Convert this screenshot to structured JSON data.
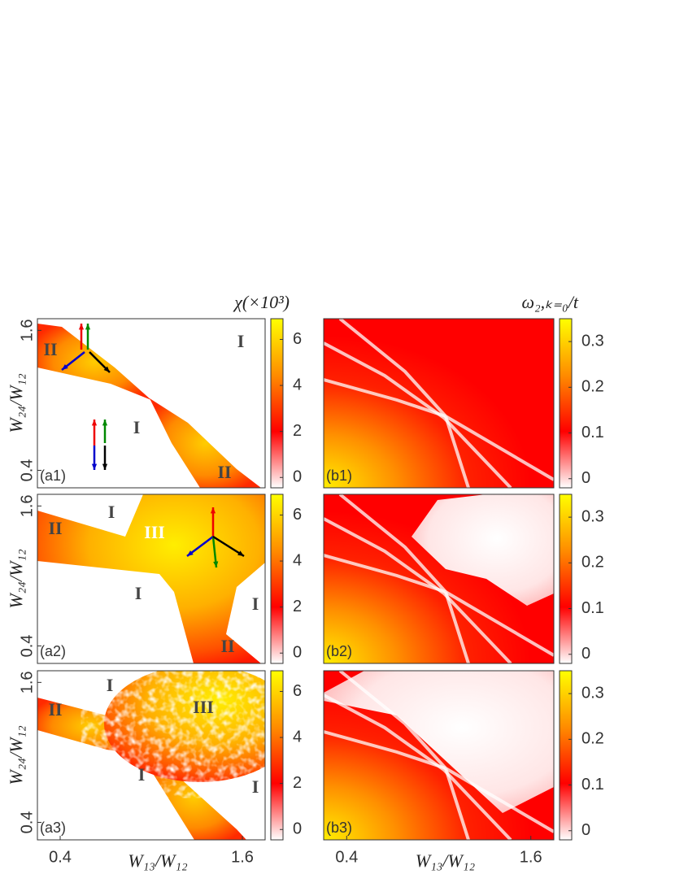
{
  "chart_data": [
    {
      "type": "heatmap",
      "panel_label": "(a1)",
      "ylabel": "W₂₄/W₁₂",
      "xlim": [
        0.25,
        1.75
      ],
      "ylim": [
        0.25,
        1.7
      ],
      "yticks": [
        0.4,
        1.6
      ],
      "colorbar": {
        "title": "χ(×10³)",
        "lim": [
          -0.45,
          6.9
        ],
        "ticks": [
          0,
          2,
          4,
          6
        ],
        "colors": [
          "#ffffff",
          "#ff0000",
          "#ff8c00",
          "#ffff00"
        ]
      },
      "annotations": [
        "II",
        "I",
        "I",
        "II"
      ]
    },
    {
      "type": "heatmap",
      "panel_label": "(a2)",
      "ylabel": "W₂₄/W₁₂",
      "xlim": [
        0.25,
        1.75
      ],
      "ylim": [
        0.25,
        1.7
      ],
      "yticks": [
        0.4,
        1.6
      ],
      "colorbar": {
        "lim": [
          -0.45,
          6.9
        ],
        "ticks": [
          0,
          2,
          4,
          6
        ],
        "colors": [
          "#ffffff",
          "#ff0000",
          "#ff8c00",
          "#ffff00"
        ]
      },
      "annotations": [
        "I",
        "II",
        "III",
        "I",
        "I",
        "II"
      ]
    },
    {
      "type": "heatmap",
      "panel_label": "(a3)",
      "ylabel": "W₂₄/W₁₂",
      "xlabel": "W₁₃/W₁₂",
      "xlim": [
        0.25,
        1.75
      ],
      "ylim": [
        0.25,
        1.7
      ],
      "xticks": [
        0.4,
        1.6
      ],
      "yticks": [
        0.4,
        1.6
      ],
      "colorbar": {
        "lim": [
          -0.45,
          6.9
        ],
        "ticks": [
          0,
          2,
          4,
          6
        ],
        "colors": [
          "#ffffff",
          "#ff0000",
          "#ff8c00",
          "#ffff00"
        ]
      },
      "annotations": [
        "I",
        "II",
        "III",
        "I",
        "I"
      ]
    },
    {
      "type": "heatmap",
      "panel_label": "(b1)",
      "xlim": [
        0.25,
        1.75
      ],
      "ylim": [
        0.25,
        1.7
      ],
      "colorbar": {
        "title": "ω₂,ₖ₌₀/t",
        "lim": [
          -0.02,
          0.35
        ],
        "ticks": [
          0,
          0.1,
          0.2,
          0.3
        ],
        "colors": [
          "#ffffff",
          "#ff0000",
          "#ff8c00",
          "#ffff00"
        ]
      },
      "annotations": []
    },
    {
      "type": "heatmap",
      "panel_label": "(b2)",
      "xlim": [
        0.25,
        1.75
      ],
      "ylim": [
        0.25,
        1.7
      ],
      "colorbar": {
        "lim": [
          -0.02,
          0.35
        ],
        "ticks": [
          0,
          0.1,
          0.2,
          0.3
        ],
        "colors": [
          "#ffffff",
          "#ff0000",
          "#ff8c00",
          "#ffff00"
        ]
      },
      "annotations": []
    },
    {
      "type": "heatmap",
      "panel_label": "(b3)",
      "xlabel": "W₁₃/W₁₂",
      "xlim": [
        0.25,
        1.75
      ],
      "ylim": [
        0.25,
        1.7
      ],
      "xticks": [
        0.4,
        1.6
      ],
      "colorbar": {
        "lim": [
          -0.02,
          0.35
        ],
        "ticks": [
          0,
          0.1,
          0.2,
          0.3
        ],
        "colors": [
          "#ffffff",
          "#ff0000",
          "#ff8c00",
          "#ffff00"
        ]
      },
      "annotations": []
    }
  ]
}
